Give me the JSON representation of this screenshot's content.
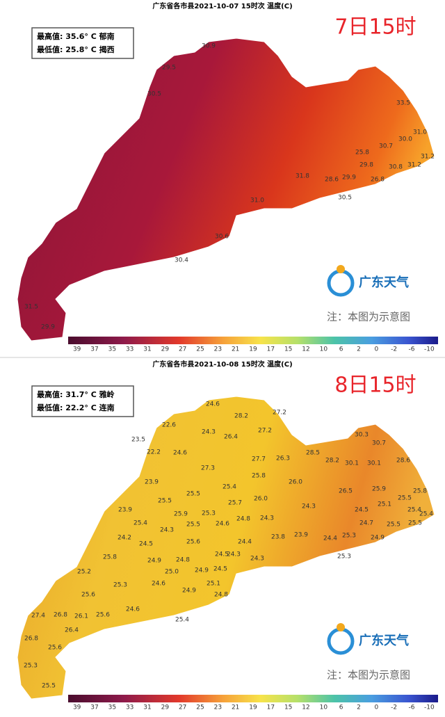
{
  "panels": [
    {
      "title": "广东省各市县2021-10-07 15时次 温度(C)",
      "time_label": "7日15时",
      "max_text": "最高值: 35.6° C 郁南",
      "min_text": "最低值: 25.8° C 揭西",
      "logo": "广东天气",
      "note": "注：本图为示意图",
      "stations": [
        "30.9",
        "29.5",
        "30.5",
        "25.8",
        "30.7",
        "30.0",
        "31.0",
        "31.2",
        "33.5",
        "29.8",
        "30.8",
        "31.2",
        "26.8",
        "28.6",
        "29.9",
        "31.8",
        "30.5",
        "31.0",
        "30.6",
        "30.4",
        "31.5",
        "29.9"
      ],
      "colorbar": [
        "39",
        "37",
        "35",
        "33",
        "31",
        "29",
        "27",
        "25",
        "23",
        "21",
        "19",
        "17",
        "15",
        "12",
        "10",
        "6",
        "2",
        "0",
        "-2",
        "-6",
        "-10"
      ]
    },
    {
      "title": "广东省各市县2021-10-08 15时次 温度(C)",
      "time_label": "8日15时",
      "max_text": "最高值: 31.7° C 雅岭",
      "min_text": "最低值: 22.2° C 连南",
      "logo": "广东天气",
      "note": "注：本图为示意图",
      "stations": [
        "24.6",
        "28.2",
        "27.2",
        "22.6",
        "24.3",
        "26.4",
        "27.2",
        "23.5",
        "22.2",
        "24.6",
        "30.3",
        "30.7",
        "27.7",
        "26.3",
        "28.5",
        "28.2",
        "30.1",
        "30.1",
        "28.6",
        "27.3",
        "25.8",
        "26.0",
        "23.9",
        "25.4",
        "25.5",
        "25.5",
        "26.5",
        "25.9",
        "25.8",
        "25.5",
        "25.7",
        "26.0",
        "25.1",
        "24.3",
        "23.9",
        "25.9",
        "25.3",
        "25.4",
        "24.5",
        "25.4",
        "25.4",
        "24.3",
        "25.5",
        "24.6",
        "24.8",
        "24.3",
        "24.7",
        "25.5",
        "25.5",
        "24.2",
        "24.5",
        "25.6",
        "24.4",
        "23.8",
        "23.9",
        "24.4",
        "25.3",
        "24.9",
        "25.8",
        "24.9",
        "24.8",
        "24.5",
        "24.3",
        "24.3",
        "25.3",
        "25.2",
        "25.3",
        "25.0",
        "24.9",
        "24.5",
        "24.6",
        "25.1",
        "24.9",
        "24.8",
        "25.6",
        "24.6",
        "25.6",
        "27.4",
        "26.8",
        "26.1",
        "25.4",
        "26.4",
        "26.8",
        "25.6",
        "25.3",
        "25.5"
      ],
      "colorbar": [
        "39",
        "37",
        "35",
        "33",
        "31",
        "29",
        "27",
        "25",
        "23",
        "21",
        "19",
        "17",
        "15",
        "12",
        "10",
        "6",
        "2",
        "0",
        "-2",
        "-6",
        "-10"
      ]
    }
  ]
}
